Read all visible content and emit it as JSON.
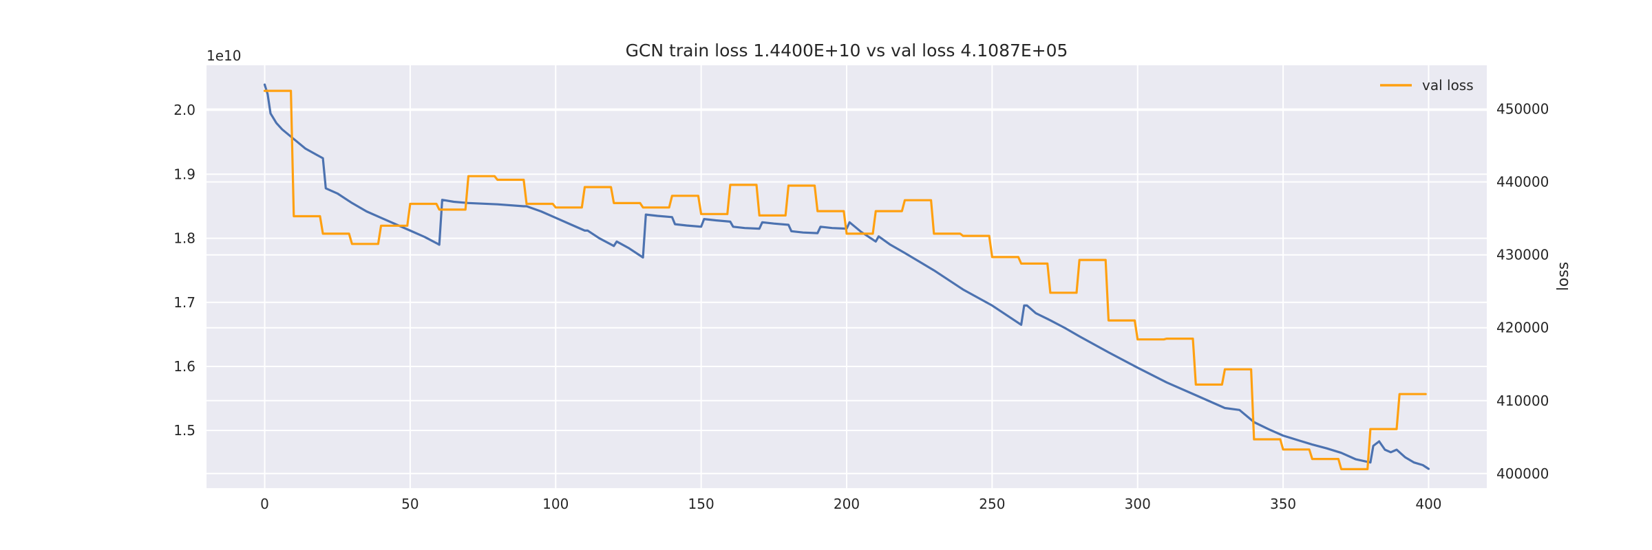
{
  "chart_data": {
    "type": "line",
    "title": "GCN train loss 1.4400E+10 vs val loss 4.1087E+05",
    "xlabel": "",
    "ylabel_left": "",
    "ylabel_right": "loss",
    "left_axis_multiplier": "1e10",
    "xlim": [
      -20,
      420
    ],
    "ylim_left": [
      14.1,
      20.7
    ],
    "ylim_right": [
      398000,
      456000
    ],
    "x_ticks": [
      0,
      50,
      100,
      150,
      200,
      250,
      300,
      350,
      400
    ],
    "y_left_ticks": [
      1.5,
      1.6,
      1.7,
      1.8,
      1.9,
      2.0
    ],
    "y_left_tick_labels": [
      "1.5",
      "1.6",
      "1.7",
      "1.8",
      "1.9",
      "2.0"
    ],
    "y_right_ticks": [
      400000,
      410000,
      420000,
      430000,
      440000,
      450000
    ],
    "y_right_tick_labels": [
      "400000",
      "410000",
      "420000",
      "430000",
      "440000",
      "450000"
    ],
    "grid": true,
    "legend_position": "top-right",
    "series": [
      {
        "axis": "left",
        "color": "#4c72b0",
        "points": [
          [
            0,
            20.4
          ],
          [
            1,
            20.25
          ],
          [
            2,
            19.95
          ],
          [
            4,
            19.8
          ],
          [
            6,
            19.7
          ],
          [
            10,
            19.55
          ],
          [
            14,
            19.4
          ],
          [
            18,
            19.3
          ],
          [
            20,
            19.25
          ],
          [
            21,
            18.78
          ],
          [
            25,
            18.7
          ],
          [
            30,
            18.55
          ],
          [
            35,
            18.42
          ],
          [
            40,
            18.32
          ],
          [
            45,
            18.22
          ],
          [
            50,
            18.12
          ],
          [
            55,
            18.02
          ],
          [
            60,
            17.9
          ],
          [
            61,
            18.6
          ],
          [
            65,
            18.57
          ],
          [
            70,
            18.55
          ],
          [
            80,
            18.53
          ],
          [
            89,
            18.5
          ],
          [
            90,
            18.5
          ],
          [
            95,
            18.42
          ],
          [
            100,
            18.32
          ],
          [
            105,
            18.22
          ],
          [
            110,
            18.12
          ],
          [
            111,
            18.12
          ],
          [
            115,
            18.0
          ],
          [
            120,
            17.88
          ],
          [
            121,
            17.95
          ],
          [
            125,
            17.85
          ],
          [
            130,
            17.7
          ],
          [
            131,
            18.37
          ],
          [
            135,
            18.35
          ],
          [
            140,
            18.33
          ],
          [
            141,
            18.22
          ],
          [
            145,
            18.2
          ],
          [
            150,
            18.18
          ],
          [
            151,
            18.3
          ],
          [
            155,
            18.28
          ],
          [
            160,
            18.26
          ],
          [
            161,
            18.18
          ],
          [
            165,
            18.16
          ],
          [
            170,
            18.15
          ],
          [
            171,
            18.25
          ],
          [
            175,
            18.23
          ],
          [
            180,
            18.21
          ],
          [
            181,
            18.11
          ],
          [
            185,
            18.09
          ],
          [
            190,
            18.08
          ],
          [
            191,
            18.18
          ],
          [
            195,
            18.16
          ],
          [
            200,
            18.15
          ],
          [
            201,
            18.25
          ],
          [
            205,
            18.1
          ],
          [
            210,
            17.95
          ],
          [
            211,
            18.03
          ],
          [
            215,
            17.9
          ],
          [
            220,
            17.77
          ],
          [
            230,
            17.5
          ],
          [
            240,
            17.2
          ],
          [
            250,
            16.95
          ],
          [
            260,
            16.65
          ],
          [
            261,
            16.95
          ],
          [
            262,
            16.95
          ],
          [
            265,
            16.83
          ],
          [
            270,
            16.72
          ],
          [
            275,
            16.6
          ],
          [
            280,
            16.47
          ],
          [
            290,
            16.22
          ],
          [
            300,
            15.98
          ],
          [
            310,
            15.75
          ],
          [
            320,
            15.55
          ],
          [
            330,
            15.35
          ],
          [
            335,
            15.32
          ],
          [
            340,
            15.13
          ],
          [
            345,
            15.02
          ],
          [
            350,
            14.92
          ],
          [
            355,
            14.85
          ],
          [
            360,
            14.78
          ],
          [
            365,
            14.72
          ],
          [
            370,
            14.65
          ],
          [
            375,
            14.55
          ],
          [
            380,
            14.5
          ],
          [
            381,
            14.76
          ],
          [
            383,
            14.83
          ],
          [
            385,
            14.7
          ],
          [
            387,
            14.66
          ],
          [
            389,
            14.7
          ],
          [
            392,
            14.58
          ],
          [
            395,
            14.5
          ],
          [
            398,
            14.46
          ],
          [
            400,
            14.4
          ]
        ]
      },
      {
        "name": "val loss",
        "axis": "right",
        "color": "#ffa010",
        "points": [
          [
            0,
            452500
          ],
          [
            9,
            452500
          ],
          [
            10,
            435300
          ],
          [
            19,
            435300
          ],
          [
            20,
            432900
          ],
          [
            29,
            432900
          ],
          [
            30,
            431500
          ],
          [
            39,
            431500
          ],
          [
            40,
            434000
          ],
          [
            49,
            434000
          ],
          [
            50,
            437000
          ],
          [
            59,
            437000
          ],
          [
            60,
            436200
          ],
          [
            69,
            436200
          ],
          [
            70,
            440800
          ],
          [
            79,
            440800
          ],
          [
            80,
            440300
          ],
          [
            89,
            440300
          ],
          [
            90,
            437000
          ],
          [
            99,
            437000
          ],
          [
            100,
            436500
          ],
          [
            109,
            436500
          ],
          [
            110,
            439300
          ],
          [
            119,
            439300
          ],
          [
            120,
            437100
          ],
          [
            129,
            437100
          ],
          [
            130,
            436500
          ],
          [
            139,
            436500
          ],
          [
            140,
            438100
          ],
          [
            149,
            438100
          ],
          [
            150,
            435600
          ],
          [
            159,
            435600
          ],
          [
            160,
            439600
          ],
          [
            169,
            439600
          ],
          [
            170,
            435400
          ],
          [
            179,
            435400
          ],
          [
            180,
            439500
          ],
          [
            189,
            439500
          ],
          [
            190,
            436000
          ],
          [
            199,
            436000
          ],
          [
            200,
            432900
          ],
          [
            209,
            432900
          ],
          [
            210,
            436000
          ],
          [
            219,
            436000
          ],
          [
            220,
            437500
          ],
          [
            229,
            437500
          ],
          [
            230,
            432900
          ],
          [
            239,
            432900
          ],
          [
            240,
            432600
          ],
          [
            249,
            432600
          ],
          [
            250,
            429700
          ],
          [
            259,
            429700
          ],
          [
            260,
            428800
          ],
          [
            269,
            428800
          ],
          [
            270,
            424800
          ],
          [
            279,
            424800
          ],
          [
            280,
            429300
          ],
          [
            289,
            429300
          ],
          [
            290,
            421000
          ],
          [
            299,
            421000
          ],
          [
            300,
            418400
          ],
          [
            309,
            418400
          ],
          [
            310,
            418500
          ],
          [
            319,
            418500
          ],
          [
            320,
            412200
          ],
          [
            329,
            412200
          ],
          [
            330,
            414300
          ],
          [
            339,
            414300
          ],
          [
            340,
            404700
          ],
          [
            349,
            404700
          ],
          [
            350,
            403300
          ],
          [
            359,
            403300
          ],
          [
            360,
            402000
          ],
          [
            369,
            402000
          ],
          [
            370,
            400600
          ],
          [
            379,
            400600
          ],
          [
            380,
            406100
          ],
          [
            389,
            406100
          ],
          [
            390,
            410900
          ],
          [
            399,
            410900
          ]
        ]
      }
    ]
  }
}
